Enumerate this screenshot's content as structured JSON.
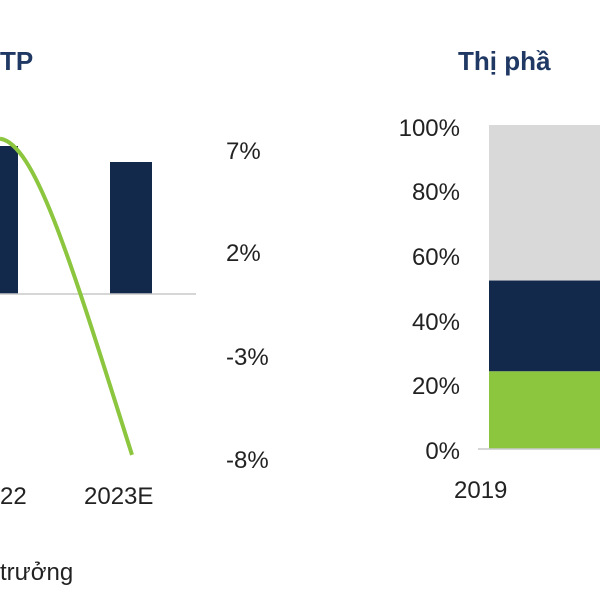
{
  "colors": {
    "navy": "#13294b",
    "green": "#8cc63f",
    "gray": "#d9d9d9",
    "text": "#222222",
    "title": "#1f3864",
    "axis": "#c8c8c8"
  },
  "chart_data": [
    {
      "type": "bar",
      "title": "TP",
      "categories": [
        "22",
        "2023E"
      ],
      "series": [
        {
          "kind": "bar",
          "values": [
            null,
            null
          ]
        },
        {
          "kind": "line",
          "axis": "right",
          "values": [
            7.5,
            -7.8
          ]
        }
      ],
      "right_axis": {
        "ticks": [
          "7%",
          "2%",
          "-3%",
          "-8%"
        ],
        "ylim": [
          -8,
          7
        ]
      },
      "legend_fragment": "trưởng",
      "legend_icon": "green-line-icon"
    },
    {
      "type": "bar",
      "stacked": true,
      "title": "Thị phầ",
      "categories": [
        "2019"
      ],
      "ylim": [
        0,
        100
      ],
      "yticks": [
        "100%",
        "80%",
        "60%",
        "40%",
        "20%",
        "0%"
      ],
      "series": [
        {
          "color": "#8cc63f",
          "values": [
            24
          ]
        },
        {
          "color": "#13294b",
          "values": [
            28
          ]
        },
        {
          "color": "#d9d9d9",
          "values": [
            48
          ]
        }
      ]
    }
  ]
}
